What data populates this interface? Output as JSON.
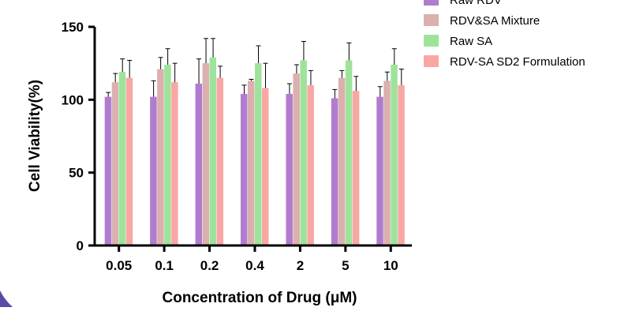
{
  "chart_data": {
    "type": "bar",
    "title": "",
    "xlabel": "Concentration of Drug (μM)",
    "ylabel": "Cell Viability(%)",
    "ylim": [
      0,
      150
    ],
    "yticks": [
      "0",
      "50",
      "100",
      "150"
    ],
    "categories": [
      "0.05",
      "0.1",
      "0.2",
      "0.4",
      "2",
      "5",
      "10"
    ],
    "error_bars": true,
    "legend_position": "top-right",
    "series": [
      {
        "name": "Raw RDV",
        "color": "#b07ccf",
        "values": [
          102,
          102,
          111,
          104,
          104,
          101,
          102
        ],
        "errors": [
          3,
          11,
          17,
          6,
          7,
          6,
          7
        ]
      },
      {
        "name": "RDV&SA Mixture",
        "color": "#dbb0ae",
        "values": [
          112,
          121,
          125,
          113,
          118,
          115,
          113
        ],
        "errors": [
          6,
          8,
          17,
          1,
          6,
          5,
          6
        ]
      },
      {
        "name": "Raw SA",
        "color": "#9ee39b",
        "values": [
          119,
          124,
          129,
          125,
          127,
          127,
          124
        ],
        "errors": [
          9,
          11,
          13,
          12,
          13,
          12,
          11
        ]
      },
      {
        "name": "RDV-SA SD2 Formulation",
        "color": "#f9a7a4",
        "values": [
          115,
          112,
          115,
          108,
          110,
          106,
          110
        ],
        "errors": [
          12,
          13,
          8,
          17,
          10,
          10,
          11
        ]
      }
    ]
  }
}
